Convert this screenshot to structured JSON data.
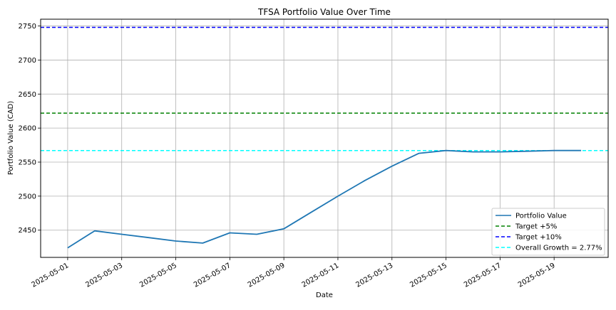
{
  "chart_data": {
    "type": "line",
    "title": "TFSA Portfolio Value Over Time",
    "xlabel": "Date",
    "ylabel": "Portfolio Value (CAD)",
    "x_tick_labels": [
      "2025-05-01",
      "2025-05-03",
      "2025-05-05",
      "2025-05-07",
      "2025-05-09",
      "2025-05-11",
      "2025-05-13",
      "2025-05-15",
      "2025-05-17",
      "2025-05-19"
    ],
    "y_ticks": [
      2450,
      2500,
      2550,
      2600,
      2650,
      2700,
      2750
    ],
    "ylim": [
      2410,
      2760
    ],
    "xlim": [
      "2025-04-30",
      "2025-05-21"
    ],
    "grid": true,
    "legend_position": "lower-right",
    "x": [
      "2025-05-01",
      "2025-05-02",
      "2025-05-03",
      "2025-05-04",
      "2025-05-05",
      "2025-05-06",
      "2025-05-07",
      "2025-05-08",
      "2025-05-09",
      "2025-05-10",
      "2025-05-11",
      "2025-05-12",
      "2025-05-13",
      "2025-05-14",
      "2025-05-15",
      "2025-05-16",
      "2025-05-17",
      "2025-05-18",
      "2025-05-19",
      "2025-05-20"
    ],
    "series": [
      {
        "name": "Portfolio Value",
        "color": "#1f77b4",
        "style": "solid",
        "values": [
          2424,
          2449,
          2444,
          2439,
          2434,
          2431,
          2446,
          2444,
          2452,
          2476,
          2500,
          2523,
          2544,
          2563,
          2567,
          2565,
          2565,
          2566,
          2567,
          2567
        ]
      }
    ],
    "reference_lines": [
      {
        "name": "Target +5%",
        "value": 2622,
        "color": "#008000",
        "style": "dashed"
      },
      {
        "name": "Target +10%",
        "value": 2748,
        "color": "#0000ff",
        "style": "dashed"
      },
      {
        "name": "Overall Growth = 2.77%",
        "value": 2567,
        "color": "#00ffff",
        "style": "dashed"
      }
    ]
  }
}
